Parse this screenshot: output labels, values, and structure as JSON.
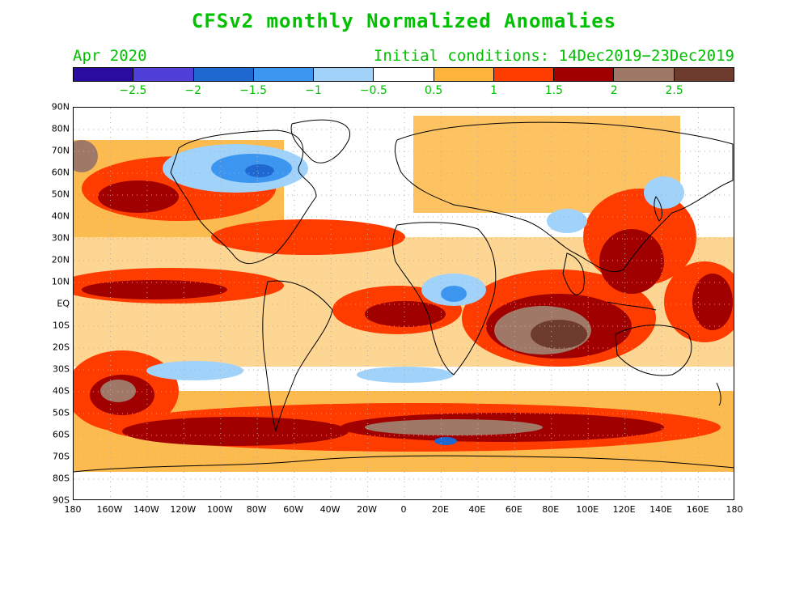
{
  "title": "CFSv2 monthly Normalized Anomalies",
  "target_month": "Apr 2020",
  "initial_conditions": "Initial conditions: 14Dec2019−23Dec2019",
  "colorbar": {
    "colors": [
      "#2a0da0",
      "#5040d8",
      "#1f68d0",
      "#3c96f0",
      "#a0d2fa",
      "#ffffff",
      "#fcb43c",
      "#ff3c00",
      "#a00000",
      "#a07868",
      "#6e3c2e"
    ],
    "labels": [
      "−2.5",
      "−2",
      "−1.5",
      "−1",
      "−0.5",
      "0.5",
      "1",
      "1.5",
      "2",
      "2.5"
    ]
  },
  "axes": {
    "lat_labels": [
      "90N",
      "80N",
      "70N",
      "60N",
      "50N",
      "40N",
      "30N",
      "20N",
      "10N",
      "EQ",
      "10S",
      "20S",
      "30S",
      "40S",
      "50S",
      "60S",
      "70S",
      "80S",
      "90S"
    ],
    "lon_labels": [
      "180",
      "160W",
      "140W",
      "120W",
      "100W",
      "80W",
      "60W",
      "40W",
      "20W",
      "0",
      "20E",
      "40E",
      "60E",
      "80E",
      "100E",
      "120E",
      "140E",
      "160E",
      "180"
    ]
  },
  "legend_colors": {
    "coast": "#000000",
    "grid": "#b0b0b0"
  }
}
